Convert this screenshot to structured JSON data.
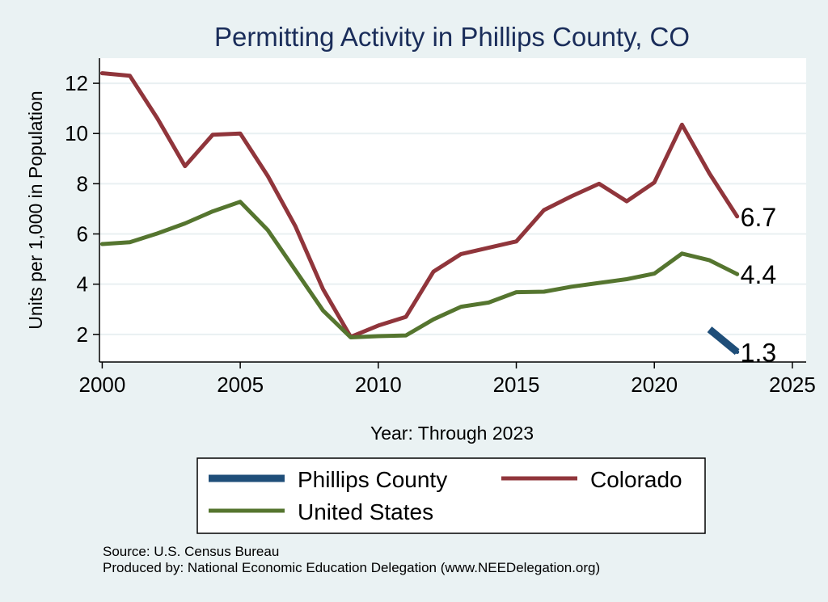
{
  "chart_data": {
    "type": "line",
    "title": "Permitting Activity in Phillips County, CO",
    "xlabel": "Year: Through 2023",
    "ylabel": "Units per 1,000 in Population",
    "xlim": [
      1999.9,
      2025.5
    ],
    "ylim": [
      0.9,
      13.0
    ],
    "xticks": [
      2000,
      2005,
      2010,
      2015,
      2020,
      2025
    ],
    "yticks": [
      2,
      4,
      6,
      8,
      10,
      12
    ],
    "grid": true,
    "legend_position": "bottom",
    "series": [
      {
        "name": "Phillips County",
        "color": "#1f4e79",
        "x": [
          2022,
          2023
        ],
        "values": [
          2.2,
          1.3
        ],
        "end_label": "1.3"
      },
      {
        "name": "Colorado",
        "color": "#90353b",
        "x": [
          2000,
          2001,
          2002,
          2003,
          2004,
          2005,
          2006,
          2007,
          2008,
          2009,
          2010,
          2011,
          2012,
          2013,
          2014,
          2015,
          2016,
          2017,
          2018,
          2019,
          2020,
          2021,
          2022,
          2023
        ],
        "values": [
          12.4,
          12.3,
          10.6,
          8.7,
          9.95,
          10.0,
          8.3,
          6.3,
          3.8,
          1.9,
          2.35,
          2.7,
          4.5,
          5.2,
          5.45,
          5.7,
          6.95,
          7.5,
          8.0,
          7.3,
          8.05,
          10.35,
          8.4,
          6.7
        ],
        "end_label": "6.7"
      },
      {
        "name": "United States",
        "color": "#55752f",
        "x": [
          2000,
          2001,
          2002,
          2003,
          2004,
          2005,
          2006,
          2007,
          2008,
          2009,
          2010,
          2011,
          2012,
          2013,
          2014,
          2015,
          2016,
          2017,
          2018,
          2019,
          2020,
          2021,
          2022,
          2023
        ],
        "values": [
          5.6,
          5.67,
          6.02,
          6.42,
          6.9,
          7.28,
          6.15,
          4.55,
          2.95,
          1.88,
          1.93,
          1.96,
          2.6,
          3.1,
          3.27,
          3.68,
          3.7,
          3.9,
          4.05,
          4.2,
          4.42,
          5.22,
          4.95,
          4.4
        ],
        "end_label": "4.4"
      }
    ],
    "legend": [
      "Phillips County",
      "Colorado",
      "United States"
    ]
  },
  "footer": {
    "source": "Source: U.S. Census Bureau",
    "produced_by": "Produced by: National Economic Education Delegation (www.NEEDelegation.org)"
  }
}
